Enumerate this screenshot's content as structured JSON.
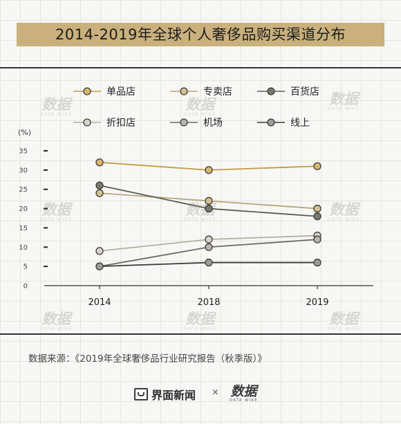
{
  "title": "2014-2019年全球个人奢侈品购买渠道分布",
  "source": "数据来源：《2019年全球奢侈品行业研究报告（秋季版）》",
  "footer": {
    "brand1": "界面新闻",
    "separator": "×",
    "brand2_logo": "数据",
    "brand2_sub": "DATA WIRE"
  },
  "watermark": {
    "logo": "数据",
    "sub": "DATA WIRE"
  },
  "colors": {
    "background": "#f7f7f5",
    "title_band": "#c9b07c",
    "axis": "#333333"
  },
  "chart_data": {
    "type": "line",
    "ylabel": "(%)",
    "x": [
      "2014",
      "2018",
      "2019"
    ],
    "ylim": [
      0,
      35
    ],
    "yticks": [
      0,
      5,
      10,
      15,
      20,
      25,
      30,
      35
    ],
    "grid": false,
    "legend_position": "top",
    "series": [
      {
        "name": "单品店",
        "values": [
          32,
          30,
          31
        ],
        "color": "#c29a3e",
        "fill": "#d9b76f"
      },
      {
        "name": "专卖店",
        "values": [
          24,
          22,
          20
        ],
        "color": "#b8a67a",
        "fill": "#d1c08f"
      },
      {
        "name": "百货店",
        "values": [
          26,
          20,
          18
        ],
        "color": "#5e5b50",
        "fill": "#7c7a6a"
      },
      {
        "name": "折扣店",
        "values": [
          9,
          12,
          13
        ],
        "color": "#b5ae9e",
        "fill": "#d7d4ca"
      },
      {
        "name": "机场",
        "values": [
          5,
          10,
          12
        ],
        "color": "#6e6860",
        "fill": "#b9b4ac"
      },
      {
        "name": "线上",
        "values": [
          5,
          6,
          6
        ],
        "color": "#3a3a3a",
        "fill": "#9d9c97"
      }
    ]
  }
}
